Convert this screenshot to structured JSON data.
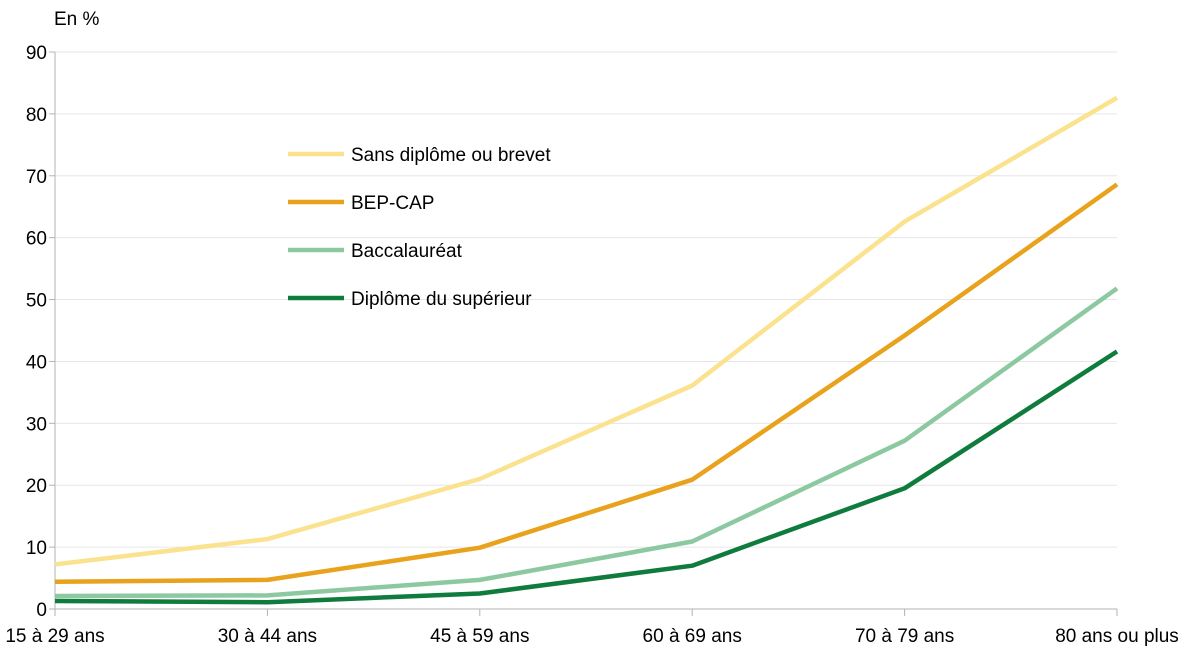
{
  "chart_data": {
    "type": "line",
    "ylabel": "En %",
    "ylim": [
      0,
      90
    ],
    "yticks": [
      0,
      10,
      20,
      30,
      40,
      50,
      60,
      70,
      80,
      90
    ],
    "categories": [
      "15 à 29 ans",
      "30 à 44 ans",
      "45 à 59 ans",
      "60 à 69 ans",
      "70 à 79 ans",
      "80 ans ou plus"
    ],
    "grid": true,
    "legend_position": "upper-left inside plot",
    "series": [
      {
        "name": "Sans diplôme ou brevet",
        "color": "#FBE28E",
        "values": [
          7.2,
          11.3,
          21.0,
          36.1,
          62.6,
          82.6
        ]
      },
      {
        "name": "BEP-CAP",
        "color": "#E8A21C",
        "values": [
          4.4,
          4.7,
          9.9,
          20.9,
          44.2,
          68.6
        ]
      },
      {
        "name": "Baccalauréat",
        "color": "#8CC9A0",
        "values": [
          2.1,
          2.2,
          4.7,
          10.9,
          27.2,
          51.8
        ]
      },
      {
        "name": "Diplôme du supérieur",
        "color": "#0F7B3C",
        "values": [
          1.3,
          1.1,
          2.5,
          7.0,
          19.5,
          41.6
        ]
      }
    ]
  }
}
